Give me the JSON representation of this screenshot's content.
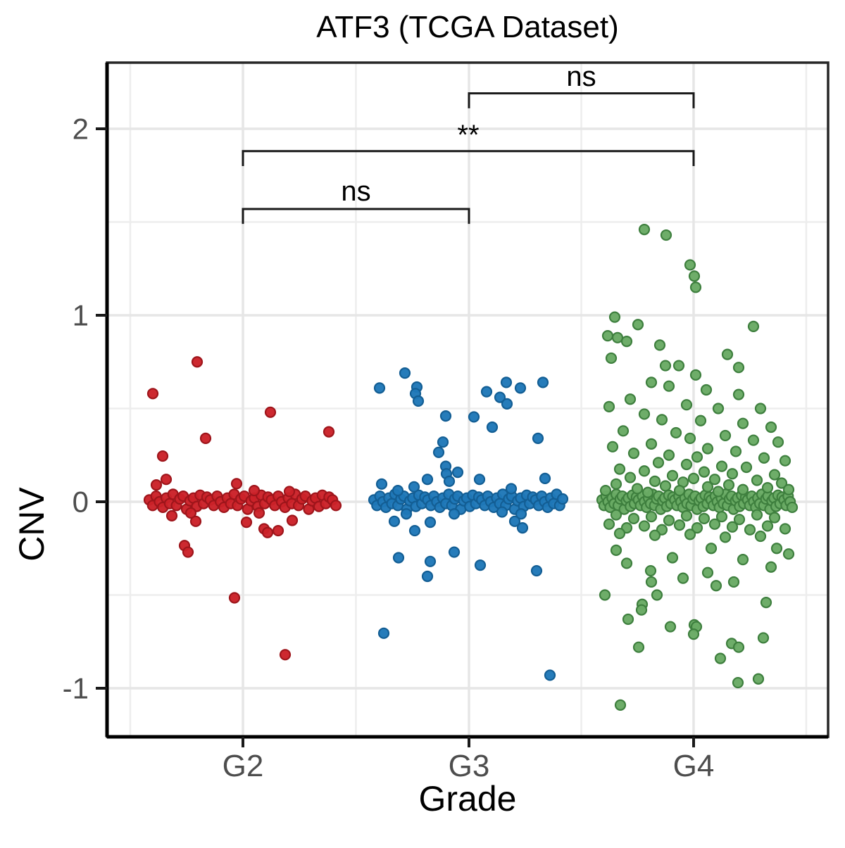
{
  "title": "ATF3 (TCGA Dataset)",
  "x_axis": {
    "label": "Grade",
    "categories": [
      "G2",
      "G3",
      "G4"
    ]
  },
  "y_axis": {
    "label": "CNV",
    "ticks": [
      2,
      1,
      0,
      -1
    ],
    "minor_ticks": [
      1.5,
      0.5,
      -0.5
    ],
    "range": [
      -1.26,
      2.37
    ]
  },
  "colors": {
    "grid_major": "#e6e6e6",
    "grid_minor": "#ededed",
    "panel_border": "#262626",
    "axis_line": "#000000",
    "tick_label": "#4d4d4d",
    "bracket": "#1a1a1a",
    "g2_red": "#cb2229",
    "g3_blue": "#1f78b8",
    "g4_green": "#69aa64"
  },
  "chart_data": {
    "type": "scatter",
    "subtype": "jitter-strip",
    "title": "ATF3 (TCGA Dataset)",
    "xlabel": "Grade",
    "ylabel": "CNV",
    "categories": [
      "G2",
      "G3",
      "G4"
    ],
    "ylim": [
      -1.26,
      2.37
    ],
    "y_ticks": [
      2,
      1,
      0,
      -1
    ],
    "y_minor_ticks": [
      1.5,
      0.5,
      -0.5
    ],
    "grid": true,
    "legend": "none",
    "series": [
      {
        "name": "G2",
        "color": "#cb2229",
        "stroke": "#9e151b",
        "band": {
          "count": 56,
          "x_from": -133,
          "x_to": 132,
          "y_cycle": [
            0.01,
            -0.02,
            0.03,
            0,
            -0.03,
            0.02,
            -0.01,
            0.04,
            -0.02,
            0.015,
            0.03,
            -0.04,
            0.005,
            0.02,
            -0.025,
            0.035,
            -0.01,
            0.025
          ]
        },
        "points": [
          [
            -128,
            0.58
          ],
          [
            -65,
            0.75
          ],
          [
            39,
            0.48
          ],
          [
            122,
            0.375
          ],
          [
            -53,
            0.34
          ],
          [
            -114,
            0.245
          ],
          [
            -109,
            0.12
          ],
          [
            -123,
            0.09
          ],
          [
            -9,
            0.097
          ],
          [
            16,
            0.06
          ],
          [
            66,
            0.055
          ],
          [
            -101,
            -0.075
          ],
          [
            -74,
            -0.06
          ],
          [
            23,
            -0.06
          ],
          [
            -67,
            -0.105
          ],
          [
            5,
            -0.11
          ],
          [
            30,
            -0.145
          ],
          [
            35,
            -0.165
          ],
          [
            50,
            -0.155
          ],
          [
            70,
            -0.1
          ],
          [
            -83,
            -0.235
          ],
          [
            -78,
            -0.27
          ],
          [
            -12,
            -0.515
          ],
          [
            60,
            -0.82
          ]
        ]
      },
      {
        "name": "G3",
        "color": "#1f78b8",
        "stroke": "#135e94",
        "band": {
          "count": 64,
          "x_from": -135,
          "x_to": 133,
          "y_cycle": [
            0.01,
            -0.02,
            0.03,
            0,
            -0.03,
            0.02,
            -0.01,
            0.04,
            -0.02,
            0.015,
            0.03,
            -0.04,
            0.005,
            0.02,
            -0.025,
            0.035,
            -0.01,
            0.025
          ]
        },
        "points": [
          [
            -127,
            0.61
          ],
          [
            -91,
            0.69
          ],
          [
            -74,
            0.615
          ],
          [
            -76,
            0.58
          ],
          [
            -72,
            0.54
          ],
          [
            -33,
            0.46
          ],
          [
            7,
            0.455
          ],
          [
            25,
            0.59
          ],
          [
            44,
            0.56
          ],
          [
            54,
            0.525
          ],
          [
            53,
            0.64
          ],
          [
            73,
            0.61
          ],
          [
            105,
            0.64
          ],
          [
            33,
            0.4
          ],
          [
            98,
            0.34
          ],
          [
            -37,
            0.32
          ],
          [
            -43,
            0.265
          ],
          [
            -33,
            0.19
          ],
          [
            -32,
            0.15
          ],
          [
            -28,
            0.11
          ],
          [
            -16,
            0.158
          ],
          [
            -59,
            0.12
          ],
          [
            -78,
            0.08
          ],
          [
            15,
            0.12
          ],
          [
            108,
            0.125
          ],
          [
            -124,
            0.095
          ],
          [
            -101,
            0.06
          ],
          [
            60,
            0.07
          ],
          [
            -106,
            -0.105
          ],
          [
            -77,
            -0.155
          ],
          [
            -55,
            -0.11
          ],
          [
            -89,
            -0.065
          ],
          [
            -21,
            -0.065
          ],
          [
            47,
            -0.055
          ],
          [
            65,
            -0.105
          ],
          [
            76,
            -0.14
          ],
          [
            74,
            -0.065
          ],
          [
            -100,
            -0.3
          ],
          [
            -55,
            -0.32
          ],
          [
            -21,
            -0.27
          ],
          [
            16,
            -0.34
          ],
          [
            -59,
            -0.4
          ],
          [
            96,
            -0.37
          ],
          [
            -121,
            -0.705
          ],
          [
            115,
            -0.93
          ]
        ]
      },
      {
        "name": "G4",
        "color": "#69aa64",
        "stroke": "#3e7f3e",
        "band": {
          "count": 95,
          "x_from": -130,
          "x_to": 140,
          "y_cycle": [
            0.01,
            -0.02,
            0.03,
            0,
            -0.03,
            0.02,
            -0.01,
            0.04,
            -0.02,
            0.015,
            0.03,
            -0.04,
            0.005,
            0.02,
            -0.025,
            0.035,
            -0.01,
            0.025
          ]
        },
        "points": [
          [
            -70,
            1.46
          ],
          [
            -39,
            1.43
          ],
          [
            -5,
            1.27
          ],
          [
            1,
            1.21
          ],
          [
            3,
            1.15
          ],
          [
            -112,
            0.99
          ],
          [
            -79,
            0.95
          ],
          [
            85,
            0.94
          ],
          [
            -122,
            0.89
          ],
          [
            -108,
            0.88
          ],
          [
            -95,
            0.86
          ],
          [
            -48,
            0.84
          ],
          [
            48,
            0.79
          ],
          [
            -117,
            0.77
          ],
          [
            -40,
            0.73
          ],
          [
            -21,
            0.73
          ],
          [
            64,
            0.72
          ],
          [
            3,
            0.68
          ],
          [
            -60,
            0.64
          ],
          [
            -35,
            0.62
          ],
          [
            18,
            0.6
          ],
          [
            64,
            0.575
          ],
          [
            -90,
            0.55
          ],
          [
            -10,
            0.52
          ],
          [
            -120,
            0.51
          ],
          [
            35,
            0.5
          ],
          [
            95,
            0.5
          ],
          [
            -70,
            0.47
          ],
          [
            -45,
            0.44
          ],
          [
            10,
            0.435
          ],
          [
            70,
            0.42
          ],
          [
            110,
            0.4
          ],
          [
            -100,
            0.38
          ],
          [
            -25,
            0.37
          ],
          [
            45,
            0.355
          ],
          [
            -5,
            0.34
          ],
          [
            85,
            0.33
          ],
          [
            120,
            0.32
          ],
          [
            -60,
            0.31
          ],
          [
            -115,
            0.295
          ],
          [
            20,
            0.285
          ],
          [
            60,
            0.27
          ],
          [
            -85,
            0.26
          ],
          [
            -35,
            0.25
          ],
          [
            5,
            0.24
          ],
          [
            100,
            0.235
          ],
          [
            130,
            0.22
          ],
          [
            -50,
            0.21
          ],
          [
            -10,
            0.2
          ],
          [
            40,
            0.19
          ],
          [
            75,
            0.185
          ],
          [
            -105,
            0.175
          ],
          [
            -70,
            0.165
          ],
          [
            15,
            0.16
          ],
          [
            55,
            0.15
          ],
          [
            115,
            0.145
          ],
          [
            -30,
            0.14
          ],
          [
            -90,
            0.13
          ],
          [
            0,
            0.125
          ],
          [
            30,
            0.12
          ],
          [
            90,
            0.115
          ],
          [
            -55,
            0.11
          ],
          [
            -15,
            0.105
          ],
          [
            125,
            0.1
          ],
          [
            -110,
            0.095
          ],
          [
            50,
            0.09
          ],
          [
            -40,
            0.085
          ],
          [
            20,
            0.08
          ],
          [
            105,
            0.075
          ],
          [
            -80,
            0.07
          ],
          [
            70,
            0.065
          ],
          [
            -20,
            0.06
          ],
          [
            35,
            0.055
          ],
          [
            -65,
            0.05
          ],
          [
            -125,
            0.06
          ],
          [
            135,
            0.065
          ],
          [
            -110,
            -0.07
          ],
          [
            -85,
            -0.09
          ],
          [
            -60,
            -0.08
          ],
          [
            -35,
            -0.1
          ],
          [
            -10,
            -0.075
          ],
          [
            15,
            -0.09
          ],
          [
            40,
            -0.08
          ],
          [
            65,
            -0.095
          ],
          [
            90,
            -0.07
          ],
          [
            115,
            -0.085
          ],
          [
            -120,
            -0.12
          ],
          [
            -95,
            -0.14
          ],
          [
            -70,
            -0.13
          ],
          [
            -45,
            -0.15
          ],
          [
            -20,
            -0.125
          ],
          [
            5,
            -0.14
          ],
          [
            30,
            -0.12
          ],
          [
            55,
            -0.135
          ],
          [
            80,
            -0.15
          ],
          [
            105,
            -0.13
          ],
          [
            130,
            -0.145
          ],
          [
            -105,
            -0.17
          ],
          [
            -55,
            -0.18
          ],
          [
            -5,
            -0.175
          ],
          [
            45,
            -0.19
          ],
          [
            95,
            -0.185
          ],
          [
            -110,
            -0.26
          ],
          [
            118,
            -0.25
          ],
          [
            25,
            -0.25
          ],
          [
            -30,
            -0.3
          ],
          [
            70,
            -0.31
          ],
          [
            -95,
            -0.33
          ],
          [
            110,
            -0.35
          ],
          [
            -61,
            -0.37
          ],
          [
            20,
            -0.38
          ],
          [
            -15,
            -0.41
          ],
          [
            -60,
            -0.43
          ],
          [
            57,
            -0.43
          ],
          [
            32,
            -0.45
          ],
          [
            -126,
            -0.5
          ],
          [
            -52,
            -0.5
          ],
          [
            103,
            -0.54
          ],
          [
            -73,
            -0.55
          ],
          [
            -74,
            -0.58
          ],
          [
            -93,
            -0.63
          ],
          [
            -33,
            -0.67
          ],
          [
            1,
            -0.66
          ],
          [
            4,
            -0.67
          ],
          [
            0,
            -0.71
          ],
          [
            99,
            -0.73
          ],
          [
            54,
            -0.76
          ],
          [
            -78,
            -0.78
          ],
          [
            64,
            -0.78
          ],
          [
            38,
            -0.84
          ],
          [
            92,
            -0.95
          ],
          [
            63,
            -0.97
          ],
          [
            -104,
            -1.09
          ],
          [
            135,
            -0.28
          ]
        ]
      }
    ],
    "comparisons": [
      {
        "group1": "G3",
        "group2": "G4",
        "label": "ns",
        "line_y": 2.19,
        "tick_to": 2.11,
        "label_y": 2.23
      },
      {
        "group1": "G2",
        "group2": "G4",
        "label": "**",
        "line_y": 1.88,
        "tick_to": 1.8,
        "label_y": 1.917
      },
      {
        "group1": "G2",
        "group2": "G3",
        "label": "ns",
        "line_y": 1.57,
        "tick_to": 1.49,
        "label_y": 1.615
      }
    ]
  }
}
